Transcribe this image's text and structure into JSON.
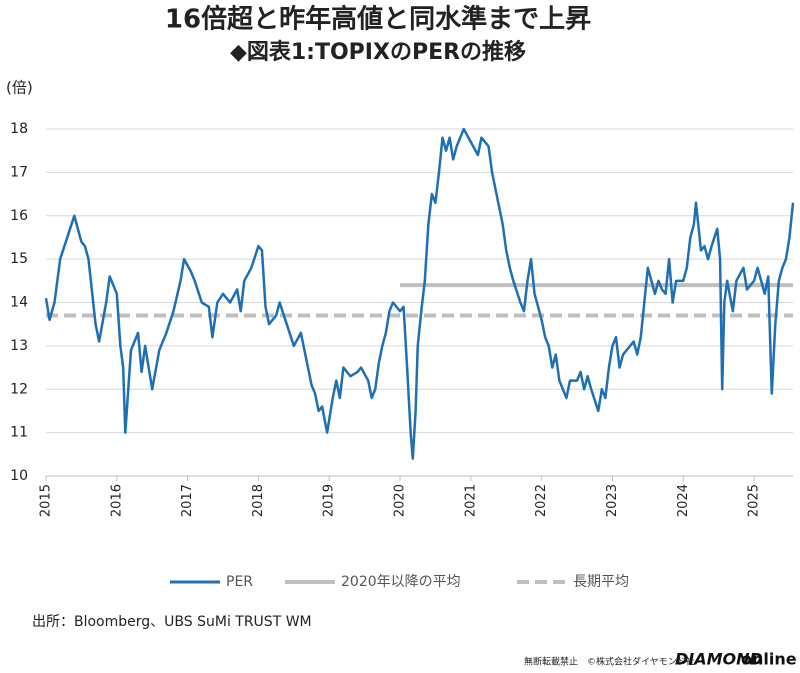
{
  "chart_data": {
    "type": "line",
    "title": "16倍超と昨年高値と同水準まで上昇",
    "subtitle": "◆図表1:TOPIXのPERの推移",
    "y_label": "(倍)",
    "xlim": [
      2015,
      2025.55
    ],
    "xticks": [
      2015,
      2016,
      2017,
      2018,
      2019,
      2020,
      2021,
      2022,
      2023,
      2024,
      2025
    ],
    "ylim": [
      10,
      18
    ],
    "yticks": [
      10,
      11,
      12,
      13,
      14,
      15,
      16,
      17,
      18
    ],
    "grid": true,
    "series": [
      {
        "name": "PER",
        "color": "#1f6fb5",
        "style": "solid",
        "x": [
          2015,
          2015.05,
          2015.12,
          2015.2,
          2015.3,
          2015.4,
          2015.5,
          2015.55,
          2015.6,
          2015.7,
          2015.75,
          2015.85,
          2015.9,
          2016,
          2016.05,
          2016.09,
          2016.12,
          2016.2,
          2016.3,
          2016.35,
          2016.4,
          2016.5,
          2016.6,
          2016.7,
          2016.8,
          2016.9,
          2016.95,
          2017.05,
          2017.1,
          2017.2,
          2017.3,
          2017.35,
          2017.42,
          2017.5,
          2017.6,
          2017.7,
          2017.75,
          2017.8,
          2017.9,
          2018,
          2018.05,
          2018.1,
          2018.15,
          2018.25,
          2018.3,
          2018.4,
          2018.5,
          2018.6,
          2018.65,
          2018.7,
          2018.75,
          2018.8,
          2018.85,
          2018.9,
          2018.97,
          2019.05,
          2019.1,
          2019.15,
          2019.2,
          2019.3,
          2019.4,
          2019.45,
          2019.55,
          2019.6,
          2019.65,
          2019.7,
          2019.75,
          2019.8,
          2019.85,
          2019.9,
          2020,
          2020.05,
          2020.1,
          2020.15,
          2020.18,
          2020.22,
          2020.25,
          2020.3,
          2020.35,
          2020.4,
          2020.45,
          2020.5,
          2020.55,
          2020.6,
          2020.65,
          2020.7,
          2020.75,
          2020.8,
          2020.85,
          2020.9,
          2021,
          2021.1,
          2021.15,
          2021.25,
          2021.3,
          2021.4,
          2021.45,
          2021.5,
          2021.55,
          2021.6,
          2021.7,
          2021.75,
          2021.8,
          2021.85,
          2021.9,
          2022,
          2022.05,
          2022.1,
          2022.15,
          2022.2,
          2022.25,
          2022.3,
          2022.35,
          2022.4,
          2022.5,
          2022.55,
          2022.6,
          2022.65,
          2022.7,
          2022.8,
          2022.85,
          2022.9,
          2022.95,
          2023,
          2023.05,
          2023.1,
          2023.15,
          2023.25,
          2023.3,
          2023.35,
          2023.4,
          2023.45,
          2023.5,
          2023.6,
          2023.65,
          2023.7,
          2023.75,
          2023.8,
          2023.85,
          2023.9,
          2024,
          2024.05,
          2024.1,
          2024.15,
          2024.18,
          2024.25,
          2024.3,
          2024.35,
          2024.4,
          2024.44,
          2024.48,
          2024.52,
          2024.55,
          2024.58,
          2024.62,
          2024.7,
          2024.75,
          2024.85,
          2024.9,
          2025,
          2025.05,
          2025.1,
          2025.15,
          2025.2,
          2025.25,
          2025.3,
          2025.35,
          2025.4,
          2025.45,
          2025.5,
          2025.55
        ],
        "values": [
          14.1,
          13.6,
          14.0,
          15.0,
          15.5,
          16.0,
          15.4,
          15.3,
          15.0,
          13.5,
          13.1,
          14.0,
          14.6,
          14.2,
          13.0,
          12.5,
          11.0,
          12.9,
          13.3,
          12.4,
          13.0,
          12.0,
          12.9,
          13.3,
          13.8,
          14.5,
          15.0,
          14.7,
          14.5,
          14.0,
          13.9,
          13.2,
          14.0,
          14.2,
          14.0,
          14.3,
          13.8,
          14.5,
          14.8,
          15.3,
          15.2,
          13.9,
          13.5,
          13.7,
          14.0,
          13.5,
          13.0,
          13.3,
          12.9,
          12.5,
          12.1,
          11.9,
          11.5,
          11.6,
          11.0,
          11.8,
          12.2,
          11.8,
          12.5,
          12.3,
          12.4,
          12.5,
          12.2,
          11.8,
          12.0,
          12.6,
          13.0,
          13.3,
          13.8,
          14.0,
          13.8,
          13.9,
          12.5,
          11.0,
          10.4,
          11.5,
          13.0,
          13.8,
          14.5,
          15.8,
          16.5,
          16.3,
          17.0,
          17.8,
          17.5,
          17.8,
          17.3,
          17.6,
          17.8,
          18.0,
          17.7,
          17.4,
          17.8,
          17.6,
          17.0,
          16.2,
          15.8,
          15.2,
          14.8,
          14.5,
          14.0,
          13.8,
          14.5,
          15.0,
          14.2,
          13.6,
          13.2,
          13.0,
          12.5,
          12.8,
          12.2,
          12.0,
          11.8,
          12.2,
          12.2,
          12.4,
          12.0,
          12.3,
          12.0,
          11.5,
          12.0,
          11.8,
          12.5,
          13.0,
          13.2,
          12.5,
          12.8,
          13.0,
          13.1,
          12.8,
          13.2,
          14.0,
          14.8,
          14.2,
          14.5,
          14.3,
          14.2,
          15.0,
          14.0,
          14.5,
          14.5,
          14.8,
          15.5,
          15.8,
          16.3,
          15.2,
          15.3,
          15.0,
          15.3,
          15.5,
          15.7,
          15.0,
          12.0,
          14.0,
          14.5,
          13.8,
          14.5,
          14.8,
          14.3,
          14.5,
          14.8,
          14.5,
          14.2,
          14.6,
          11.9,
          13.5,
          14.5,
          14.8,
          15.0,
          15.5,
          16.3
        ]
      },
      {
        "name": "2020年以降の平均",
        "color": "#bfbfbf",
        "style": "solid",
        "x": [
          2020,
          2025.55
        ],
        "values": [
          14.4,
          14.4
        ]
      },
      {
        "name": "長期平均",
        "color": "#bfbfbf",
        "style": "dashed",
        "x": [
          2015,
          2025.55
        ],
        "values": [
          13.7,
          13.7
        ]
      }
    ],
    "source": "出所：Bloomberg、UBS SuMi TRUST WM",
    "footer_note": "無断転載禁止　©株式会社ダイヤモンド社",
    "brand": "DIAMOND",
    "brand_suffix": "online"
  }
}
